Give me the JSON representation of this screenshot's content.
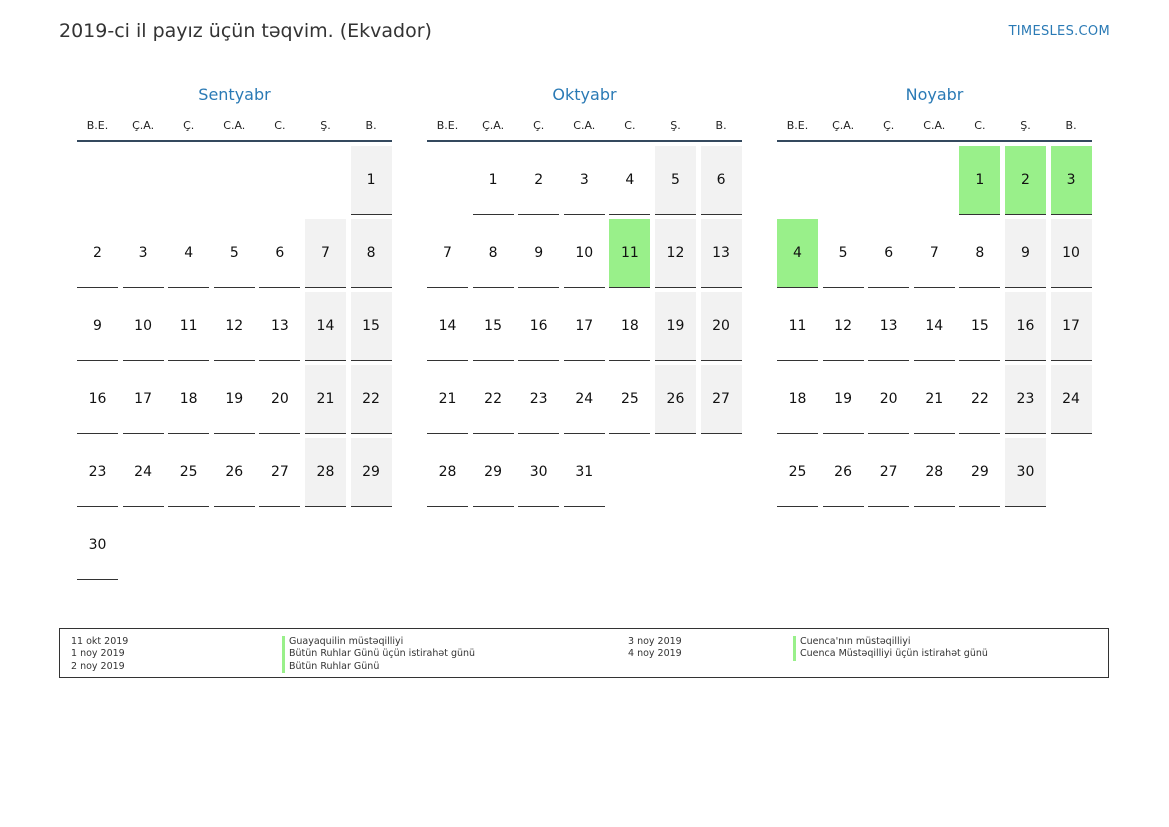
{
  "header": {
    "title": "2019-ci il payız üçün təqvim. (Ekvador)",
    "site": "TIMESLES.COM"
  },
  "colors": {
    "accent": "#2a7ab5",
    "holiday": "#99f08a",
    "weekend": "#f2f2f2"
  },
  "weekdays": [
    "B.E.",
    "Ç.A.",
    "Ç.",
    "C.A.",
    "C.",
    "Ş.",
    "B."
  ],
  "months": [
    {
      "name": "Sentyabr",
      "start_offset": 6,
      "days": 30,
      "holidays": []
    },
    {
      "name": "Oktyabr",
      "start_offset": 1,
      "days": 31,
      "holidays": [
        11
      ]
    },
    {
      "name": "Noyabr",
      "start_offset": 4,
      "days": 30,
      "holidays": [
        1,
        2,
        3,
        4
      ]
    }
  ],
  "legend": {
    "left": [
      {
        "date": "11 okt 2019",
        "name": "Guayaquilin müstəqilliyi"
      },
      {
        "date": "1 noy 2019",
        "name": "Bütün Ruhlar Günü üçün istirahət günü"
      },
      {
        "date": "2 noy 2019",
        "name": "Bütün Ruhlar Günü"
      }
    ],
    "right": [
      {
        "date": "3 noy 2019",
        "name": "Cuenca'nın müstəqilliyi"
      },
      {
        "date": "4 noy 2019",
        "name": "Cuenca Müstəqilliyi üçün istirahət günü"
      }
    ]
  }
}
